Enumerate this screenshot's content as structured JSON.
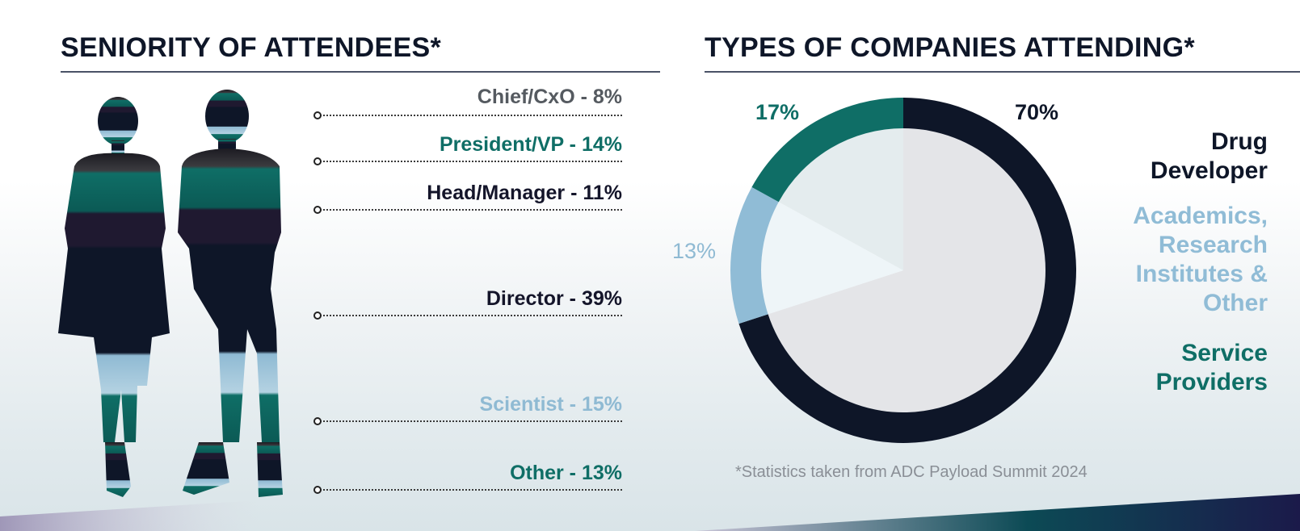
{
  "left": {
    "title": "SENIORITY OF ATTENDEES*",
    "items": [
      {
        "label": "Chief/CxO - 8%",
        "color": "#555a60"
      },
      {
        "label": "President/VP - 14%",
        "color": "#0f6e66"
      },
      {
        "label": "Head/Manager - 11%",
        "color": "#14152a"
      },
      {
        "label": "Director - 39%",
        "color": "#14152a"
      },
      {
        "label": "Scientist - 15%",
        "color": "#8fbad3"
      },
      {
        "label": "Other - 13%",
        "color": "#0f6e66"
      }
    ]
  },
  "right": {
    "title": "TYPES OF COMPANIES ATTENDING*",
    "footnote": "*Statistics taken from ADC Payload Summit 2024",
    "legend": [
      {
        "label_line1": "Drug",
        "label_line2": "Developer",
        "color": "#0e1628"
      },
      {
        "label_line1": "Academics,",
        "label_line2": "Research",
        "label_line3": "Institutes &",
        "label_line4": "Other",
        "color": "#90bcd6"
      },
      {
        "label_line1": "Service",
        "label_line2": "Providers",
        "color": "#0f6e66"
      }
    ]
  },
  "chart_data": {
    "type": "pie",
    "title": "TYPES OF COMPANIES ATTENDING*",
    "categories": [
      "Drug Developer",
      "Academics, Research Institutes & Other",
      "Service Providers"
    ],
    "values": [
      70,
      13,
      17
    ],
    "labels": [
      "70%",
      "13%",
      "17%"
    ],
    "colors": [
      "#0e1628",
      "#90bcd6",
      "#0f6e66"
    ],
    "legend_position": "right"
  }
}
